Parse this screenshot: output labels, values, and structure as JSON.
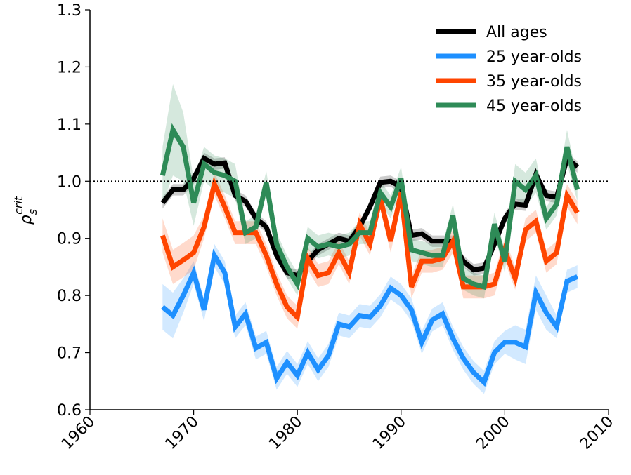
{
  "chart_data": {
    "type": "line",
    "ylabel": {
      "base": "ρ",
      "subscript": "s",
      "superscript": "crit"
    },
    "x": [
      1967,
      1968,
      1969,
      1970,
      1971,
      1972,
      1973,
      1974,
      1975,
      1976,
      1977,
      1978,
      1979,
      1980,
      1981,
      1982,
      1983,
      1984,
      1985,
      1986,
      1987,
      1988,
      1989,
      1990,
      1991,
      1992,
      1993,
      1994,
      1995,
      1996,
      1997,
      1998,
      1999,
      2000,
      2001,
      2002,
      2003,
      2004,
      2005,
      2006,
      2007
    ],
    "series": [
      {
        "name": "All ages",
        "color": "#000000",
        "values": [
          0.962,
          0.985,
          0.985,
          1.005,
          1.04,
          1.03,
          1.032,
          0.975,
          0.965,
          0.935,
          0.92,
          0.87,
          0.84,
          0.835,
          0.86,
          0.88,
          0.89,
          0.9,
          0.895,
          0.92,
          0.955,
          0.998,
          1.0,
          0.99,
          0.905,
          0.908,
          0.895,
          0.895,
          0.895,
          0.86,
          0.845,
          0.848,
          0.89,
          0.935,
          0.96,
          0.958,
          1.012,
          0.975,
          0.972,
          1.04,
          1.025
        ],
        "error": [
          0.01,
          0.01,
          0.01,
          0.01,
          0.01,
          0.01,
          0.01,
          0.01,
          0.01,
          0.01,
          0.01,
          0.01,
          0.01,
          0.01,
          0.01,
          0.01,
          0.01,
          0.01,
          0.01,
          0.01,
          0.01,
          0.01,
          0.01,
          0.01,
          0.01,
          0.01,
          0.01,
          0.01,
          0.01,
          0.01,
          0.01,
          0.01,
          0.01,
          0.01,
          0.01,
          0.01,
          0.01,
          0.01,
          0.01,
          0.01,
          0.01
        ]
      },
      {
        "name": "25 year-olds",
        "color": "#1e90ff",
        "values": [
          0.78,
          0.765,
          0.8,
          0.84,
          0.775,
          0.87,
          0.84,
          0.745,
          0.768,
          0.708,
          0.718,
          0.655,
          0.683,
          0.66,
          0.7,
          0.67,
          0.695,
          0.75,
          0.745,
          0.765,
          0.762,
          0.782,
          0.813,
          0.8,
          0.775,
          0.718,
          0.757,
          0.768,
          0.725,
          0.69,
          0.665,
          0.648,
          0.7,
          0.718,
          0.718,
          0.71,
          0.805,
          0.77,
          0.745,
          0.825,
          0.833
        ],
        "error": [
          0.04,
          0.04,
          0.03,
          0.02,
          0.02,
          0.02,
          0.02,
          0.02,
          0.02,
          0.02,
          0.02,
          0.02,
          0.02,
          0.02,
          0.02,
          0.02,
          0.02,
          0.02,
          0.02,
          0.02,
          0.02,
          0.02,
          0.02,
          0.02,
          0.02,
          0.02,
          0.02,
          0.02,
          0.02,
          0.02,
          0.02,
          0.02,
          0.02,
          0.02,
          0.03,
          0.03,
          0.03,
          0.03,
          0.02,
          0.02,
          0.02
        ]
      },
      {
        "name": "35 year-olds",
        "color": "#ff4500",
        "values": [
          0.905,
          0.85,
          0.862,
          0.875,
          0.92,
          0.995,
          0.955,
          0.91,
          0.91,
          0.91,
          0.87,
          0.82,
          0.78,
          0.762,
          0.865,
          0.835,
          0.84,
          0.875,
          0.84,
          0.925,
          0.89,
          0.97,
          0.895,
          0.98,
          0.815,
          0.86,
          0.86,
          0.865,
          0.895,
          0.815,
          0.815,
          0.815,
          0.82,
          0.88,
          0.83,
          0.915,
          0.93,
          0.86,
          0.875,
          0.975,
          0.945
        ],
        "error": [
          0.03,
          0.03,
          0.03,
          0.03,
          0.02,
          0.02,
          0.02,
          0.02,
          0.02,
          0.02,
          0.02,
          0.02,
          0.02,
          0.02,
          0.02,
          0.02,
          0.02,
          0.02,
          0.02,
          0.02,
          0.02,
          0.02,
          0.02,
          0.02,
          0.02,
          0.02,
          0.02,
          0.02,
          0.02,
          0.02,
          0.02,
          0.02,
          0.02,
          0.02,
          0.02,
          0.02,
          0.02,
          0.02,
          0.02,
          0.02,
          0.02
        ]
      },
      {
        "name": "45 year-olds",
        "color": "#2e8b57",
        "values": [
          1.01,
          1.09,
          1.06,
          0.962,
          1.03,
          1.015,
          1.01,
          1.0,
          0.91,
          0.92,
          0.998,
          0.89,
          0.85,
          0.82,
          0.9,
          0.885,
          0.89,
          0.885,
          0.89,
          0.91,
          0.91,
          0.98,
          0.955,
          1.005,
          0.88,
          0.875,
          0.87,
          0.87,
          0.94,
          0.83,
          0.82,
          0.815,
          0.925,
          0.86,
          1.0,
          0.985,
          1.01,
          0.935,
          0.96,
          1.06,
          0.985
        ],
        "error": [
          0.05,
          0.08,
          0.06,
          0.04,
          0.03,
          0.03,
          0.03,
          0.03,
          0.02,
          0.02,
          0.02,
          0.02,
          0.02,
          0.02,
          0.02,
          0.02,
          0.02,
          0.02,
          0.02,
          0.02,
          0.02,
          0.02,
          0.02,
          0.02,
          0.02,
          0.02,
          0.02,
          0.02,
          0.02,
          0.02,
          0.02,
          0.02,
          0.02,
          0.02,
          0.03,
          0.03,
          0.03,
          0.02,
          0.02,
          0.03,
          0.02
        ]
      }
    ],
    "hline": 1,
    "xlim": [
      1960,
      2010
    ],
    "xticks": [
      1960,
      1970,
      1980,
      1990,
      2000,
      2010
    ],
    "ylim": [
      0.6,
      1.3
    ],
    "yticks": [
      0.6,
      0.7,
      0.8,
      0.9,
      {
        "value": 1,
        "label": "1.0"
      },
      1.1,
      1.2,
      1.3
    ],
    "legend": "upper right",
    "grid": false
  }
}
